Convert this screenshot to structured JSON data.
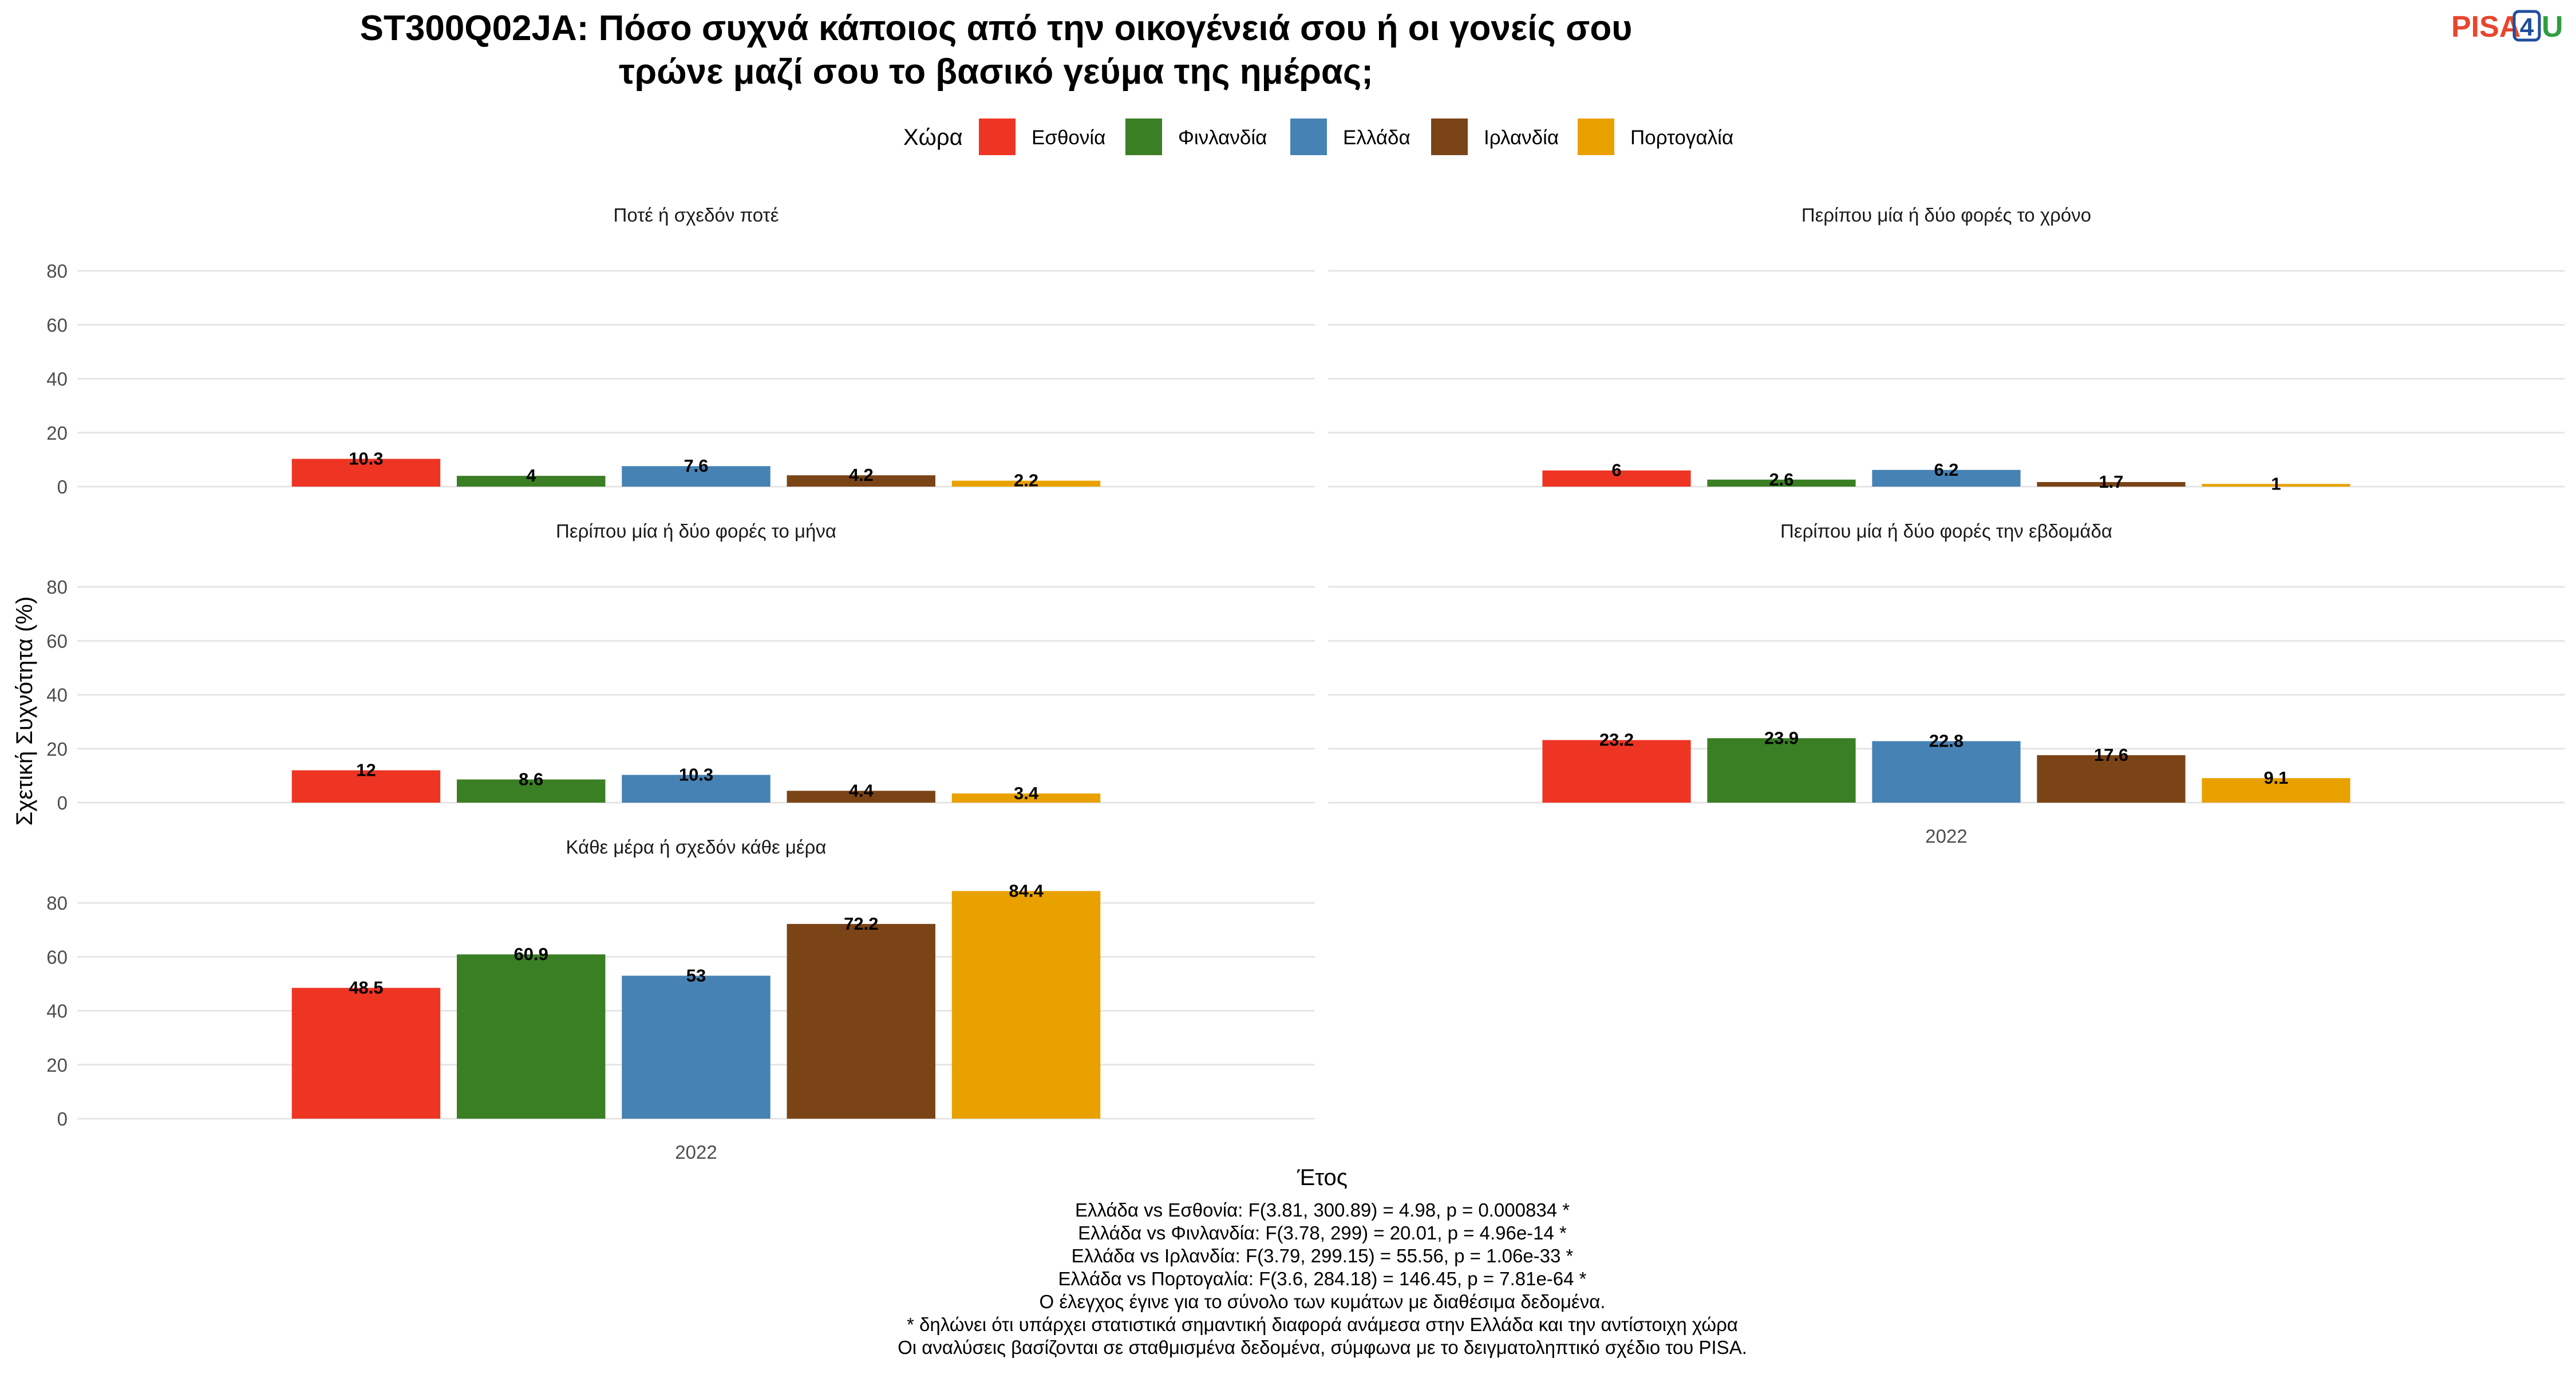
{
  "logo": {
    "pisa": "PISA",
    "four": "4",
    "u": "U"
  },
  "chart_data": {
    "type": "bar",
    "title_lines": [
      "ST300Q02JA: Πόσο συχνά κάποιος από την οικογένειά σου ή οι γονείς σου",
      "τρώνε μαζί σου το βασικό γεύμα της ημέρας;"
    ],
    "legend": {
      "title": "Χώρα",
      "placement": "top",
      "items": [
        {
          "name": "Εσθονία",
          "color": "#EE3524"
        },
        {
          "name": "Φινλανδία",
          "color": "#3A7F24"
        },
        {
          "name": "Ελλάδα",
          "color": "#4682B4"
        },
        {
          "name": "Ιρλανδία",
          "color": "#7B4416"
        },
        {
          "name": "Πορτογαλία",
          "color": "#E9A100"
        }
      ]
    },
    "xlabel": "Έτος",
    "ylabel": "Σχετική Συχνότητα (%)",
    "ylim": [
      0,
      90
    ],
    "yticks": [
      "0",
      "20",
      "40",
      "60",
      "80"
    ],
    "category": "2022",
    "grid": true,
    "facets": [
      {
        "title": "Ποτέ ή σχεδόν ποτέ",
        "values": [
          10.3,
          4,
          7.6,
          4.2,
          2.2
        ],
        "labels": [
          "10.3",
          "4",
          "7.6",
          "4.2",
          "2.2"
        ]
      },
      {
        "title": "Περίπου μία ή δύο φορές το χρόνο",
        "values": [
          6,
          2.6,
          6.2,
          1.7,
          1
        ],
        "labels": [
          "6",
          "2.6",
          "6.2",
          "1.7",
          "1"
        ]
      },
      {
        "title": "Περίπου μία ή δύο φορές το μήνα",
        "values": [
          12,
          8.6,
          10.3,
          4.4,
          3.4
        ],
        "labels": [
          "12",
          "8.6",
          "10.3",
          "4.4",
          "3.4"
        ]
      },
      {
        "title": "Περίπου μία ή δύο φορές την εβδομάδα",
        "values": [
          23.2,
          23.9,
          22.8,
          17.6,
          9.1
        ],
        "labels": [
          "23.2",
          "23.9",
          "22.8",
          "17.6",
          "9.1"
        ]
      },
      {
        "title": "Κάθε μέρα ή σχεδόν κάθε μέρα",
        "values": [
          48.5,
          60.9,
          53,
          72.2,
          84.4
        ],
        "labels": [
          "48.5",
          "60.9",
          "53",
          "72.2",
          "84.4"
        ]
      }
    ],
    "caption_lines": [
      "Ελλάδα vs Εσθονία: F(3.81, 300.89) = 4.98, p = 0.000834 *",
      "Ελλάδα vs Φινλανδία: F(3.78, 299) = 20.01, p = 4.96e-14 *",
      "Ελλάδα vs Ιρλανδία: F(3.79, 299.15) = 55.56, p = 1.06e-33 *",
      "Ελλάδα vs Πορτογαλία: F(3.6, 284.18) = 146.45, p = 7.81e-64 *",
      "Ο έλεγχος έγινε για το σύνολο των κυμάτων με διαθέσιμα δεδομένα.",
      "* δηλώνει ότι υπάρχει στατιστικά σημαντική διαφορά ανάμεσα στην Ελλάδα και την αντίστοιχη χώρα",
      "Οι αναλύσεις βασίζονται σε σταθμισμένα δεδομένα, σύμφωνα με το δειγματοληπτικό σχέδιο του PISA."
    ]
  }
}
